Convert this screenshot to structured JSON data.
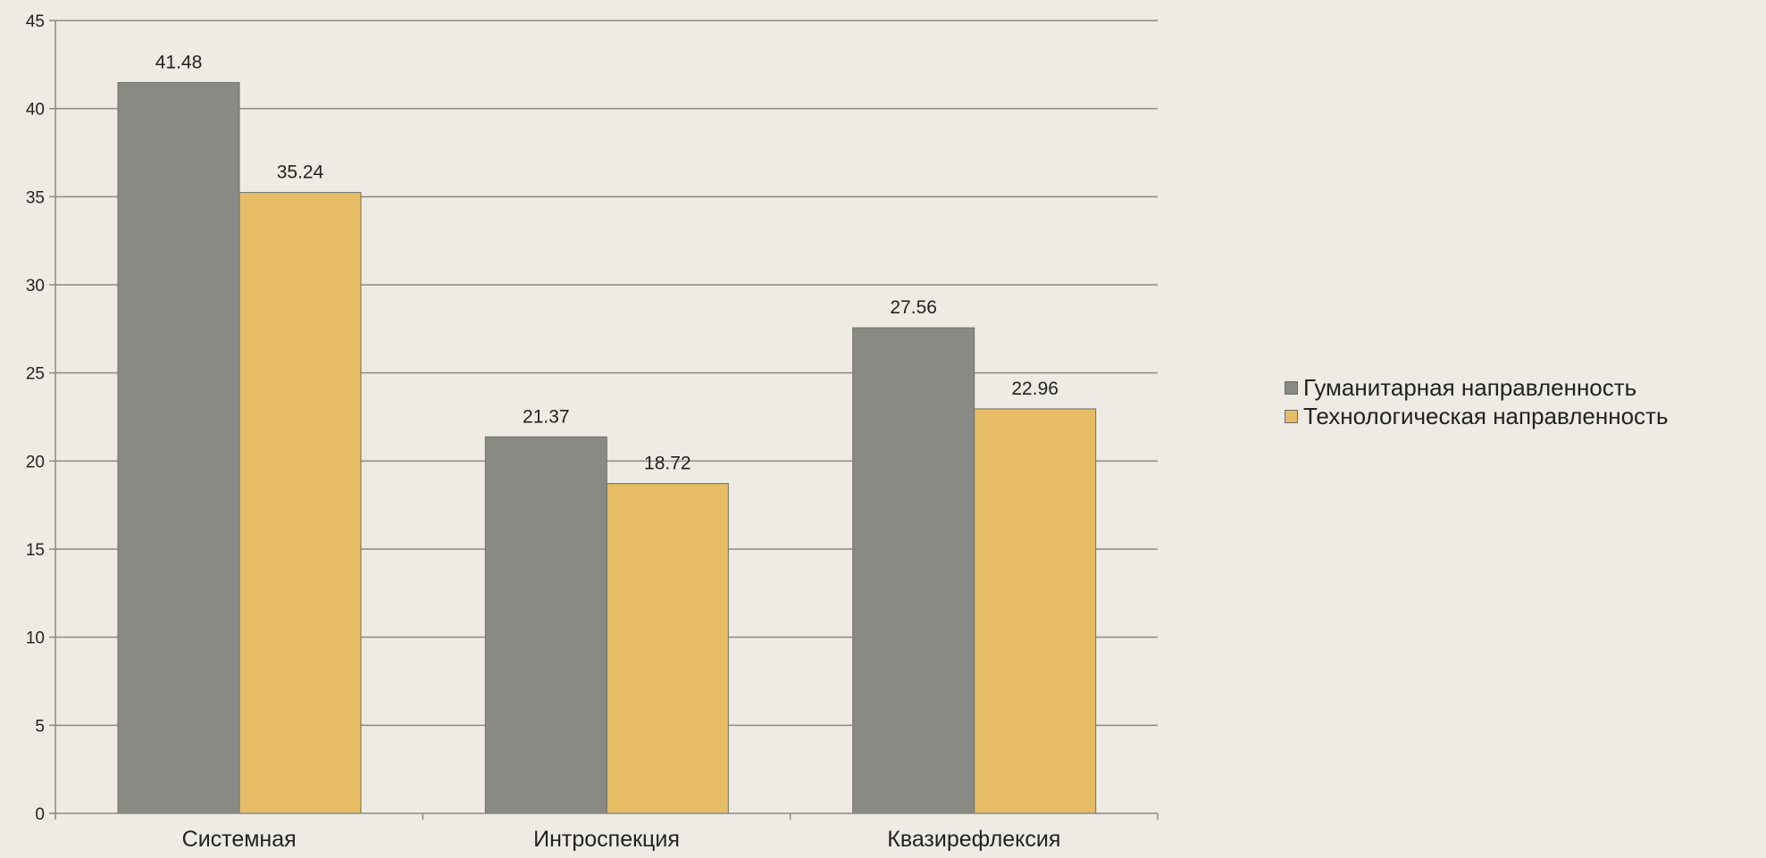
{
  "chart_data": {
    "type": "bar",
    "categories": [
      "Системная",
      "Интроспекция",
      "Квазирефлексия"
    ],
    "series": [
      {
        "name": "Гуманитарная направленность",
        "values": [
          41.48,
          21.37,
          27.56
        ],
        "labels": [
          "41.48",
          "21.37",
          "27.56"
        ],
        "color": "#8a8a84"
      },
      {
        "name": "Технологическая направленность",
        "values": [
          35.24,
          18.72,
          22.96
        ],
        "labels": [
          "35.24",
          "18.72",
          "22.96"
        ],
        "color": "#e6bd64"
      }
    ],
    "ylim": [
      0,
      45
    ],
    "yticks": [
      "0",
      "5",
      "10",
      "15",
      "20",
      "25",
      "30",
      "35",
      "40",
      "45"
    ],
    "grid": true,
    "legend_position": "right",
    "colors": {
      "background": "#eeebe4",
      "gridline": "#8a8a84",
      "axis": "#8a8a84"
    }
  }
}
